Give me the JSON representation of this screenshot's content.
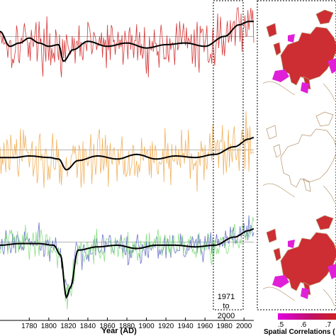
{
  "chart_data": {
    "type": "line",
    "xlabel": "Year (AD)",
    "x_range": [
      1750,
      2010
    ],
    "x_ticks": [
      "1780",
      "1800",
      "1820",
      "1840",
      "1860",
      "1880",
      "1900",
      "1920",
      "1940",
      "1960",
      "1980",
      "2000"
    ],
    "highlight": {
      "from": 1971,
      "to": 2000,
      "label_top": "1971",
      "label_mid": "to",
      "label_bottom": "2000"
    },
    "grid": false,
    "colors": {
      "red": "#d22323",
      "orange": "#efaa4c",
      "blue": "#5c63c4",
      "green": "#7ddc7a",
      "smooth": "#000000"
    },
    "panels": [
      {
        "id": "top",
        "series": [
          {
            "color": "red",
            "style": "annual"
          },
          {
            "color": "smooth",
            "style": "smooth"
          }
        ],
        "smooth_anchors": [
          [
            1750,
            0.45
          ],
          [
            1760,
            0.0
          ],
          [
            1770,
            0.1
          ],
          [
            1780,
            0.25
          ],
          [
            1790,
            0.1
          ],
          [
            1800,
            0.0
          ],
          [
            1810,
            0.05
          ],
          [
            1815,
            -0.45
          ],
          [
            1825,
            -0.1
          ],
          [
            1840,
            0.15
          ],
          [
            1860,
            0.0
          ],
          [
            1880,
            0.1
          ],
          [
            1900,
            -0.05
          ],
          [
            1920,
            0.05
          ],
          [
            1940,
            0.1
          ],
          [
            1960,
            0.0
          ],
          [
            1980,
            0.3
          ],
          [
            1995,
            0.65
          ],
          [
            2005,
            0.75
          ],
          [
            2010,
            0.75
          ]
        ],
        "noise_amplitude": 0.55,
        "reference": 0.3,
        "y_range": [
          -1.6,
          1.4
        ]
      },
      {
        "id": "middle",
        "series": [
          {
            "color": "orange",
            "style": "annual"
          },
          {
            "color": "smooth",
            "style": "smooth"
          }
        ],
        "smooth_anchors": [
          [
            1750,
            0.0
          ],
          [
            1765,
            0.0
          ],
          [
            1780,
            0.05
          ],
          [
            1800,
            0.0
          ],
          [
            1810,
            -0.05
          ],
          [
            1818,
            -0.4
          ],
          [
            1830,
            -0.1
          ],
          [
            1850,
            0.05
          ],
          [
            1870,
            -0.05
          ],
          [
            1890,
            0.1
          ],
          [
            1910,
            -0.05
          ],
          [
            1930,
            0.05
          ],
          [
            1950,
            0.0
          ],
          [
            1970,
            0.1
          ],
          [
            1990,
            0.35
          ],
          [
            2005,
            0.6
          ],
          [
            2010,
            0.65
          ]
        ],
        "noise_amplitude": 0.7,
        "reference": 0.25,
        "y_range": [
          -1.8,
          1.9
        ]
      },
      {
        "id": "bottom",
        "series": [
          {
            "color": "blue",
            "style": "annual"
          },
          {
            "color": "green",
            "style": "annual"
          },
          {
            "color": "smooth",
            "style": "smooth"
          }
        ],
        "smooth_anchors": [
          [
            1750,
            0.0
          ],
          [
            1770,
            0.05
          ],
          [
            1790,
            0.05
          ],
          [
            1805,
            0.0
          ],
          [
            1812,
            -0.3
          ],
          [
            1818,
            -1.6
          ],
          [
            1822,
            -1.3
          ],
          [
            1830,
            -0.15
          ],
          [
            1850,
            -0.05
          ],
          [
            1870,
            0.0
          ],
          [
            1890,
            -0.1
          ],
          [
            1910,
            0.0
          ],
          [
            1930,
            0.0
          ],
          [
            1950,
            -0.05
          ],
          [
            1970,
            0.0
          ],
          [
            1990,
            0.25
          ],
          [
            2005,
            0.45
          ],
          [
            2010,
            0.5
          ]
        ],
        "noise_amplitude": 0.35,
        "reference": 0.1,
        "y_range": [
          -2.2,
          1.0
        ]
      }
    ]
  },
  "maps": {
    "land_color": "#cc2e33",
    "highlight_color": "#e020d8",
    "outline_color": "#b5926a",
    "panels": [
      {
        "id": "map-top",
        "filled": true
      },
      {
        "id": "map-middle",
        "filled": false
      },
      {
        "id": "map-bottom",
        "filled": true
      }
    ]
  },
  "colorbar": {
    "tick_labels": [
      ".5",
      ".6",
      ".7"
    ],
    "label": "Spatial Correlations (",
    "stops": [
      "#e000e0",
      "#c01070",
      "#cc2020"
    ]
  }
}
